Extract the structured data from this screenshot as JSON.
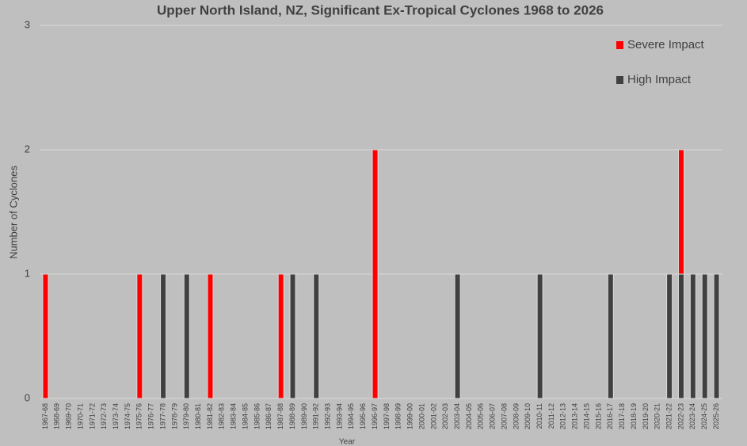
{
  "chart_data": {
    "type": "stacked_bar",
    "title": "Upper North Island, NZ,  Significant Ex-Tropical Cyclones 1968 to 2026",
    "y_label": "Number of Cyclones",
    "x_label": "Year",
    "categories": [
      "1967-68",
      "1968-69",
      "1969-70",
      "1970-71",
      "1971-72",
      "1972-73",
      "1973-74",
      "1974-75",
      "1975-76",
      "1976-77",
      "1977-78",
      "1978-79",
      "1979-80",
      "1980-81",
      "1981-82",
      "1982-83",
      "1983-84",
      "1984-85",
      "1985-86",
      "1986-87",
      "1987-88",
      "1988-89",
      "1989-90",
      "1991-92",
      "1992-93",
      "1993-94",
      "1994-95",
      "1995-96",
      "1996-97",
      "1997-98",
      "1998-99",
      "1999-00",
      "2000-01",
      "2001-02",
      "2002-03",
      "2003-04",
      "2004-05",
      "2005-06",
      "2006-07",
      "2007-08",
      "2008-09",
      "2009-10",
      "2010-11",
      "2011-12",
      "2012-13",
      "2013-14",
      "2014-15",
      "2015-16",
      "2016-17",
      "2017-18",
      "2018-19",
      "2019-20",
      "2020-21",
      "2021-22",
      "2022-23",
      "2023-24",
      "2024-25",
      "2025-26"
    ],
    "series": [
      {
        "name": "High Impact",
        "color": "#404040",
        "values": [
          0,
          0,
          0,
          0,
          0,
          0,
          0,
          0,
          0,
          0,
          1,
          0,
          1,
          0,
          0,
          0,
          0,
          0,
          0,
          0,
          0,
          1,
          0,
          1,
          0,
          0,
          0,
          0,
          0,
          0,
          0,
          0,
          0,
          0,
          0,
          1,
          0,
          0,
          0,
          0,
          0,
          0,
          1,
          0,
          0,
          0,
          0,
          0,
          1,
          0,
          0,
          0,
          0,
          1,
          1,
          1,
          1,
          1
        ]
      },
      {
        "name": "Severe Impact",
        "color": "#ff0000",
        "values": [
          1,
          0,
          0,
          0,
          0,
          0,
          0,
          0,
          1,
          0,
          0,
          0,
          0,
          0,
          1,
          0,
          0,
          0,
          0,
          0,
          1,
          0,
          0,
          0,
          0,
          0,
          0,
          0,
          2,
          0,
          0,
          0,
          0,
          0,
          0,
          0,
          0,
          0,
          0,
          0,
          0,
          0,
          0,
          0,
          0,
          0,
          0,
          0,
          0,
          0,
          0,
          0,
          0,
          0,
          1,
          0,
          0,
          0
        ]
      }
    ],
    "ylim": [
      0,
      3
    ],
    "yticks": [
      0,
      1,
      2,
      3
    ],
    "grid": true,
    "legend": "top-right"
  }
}
